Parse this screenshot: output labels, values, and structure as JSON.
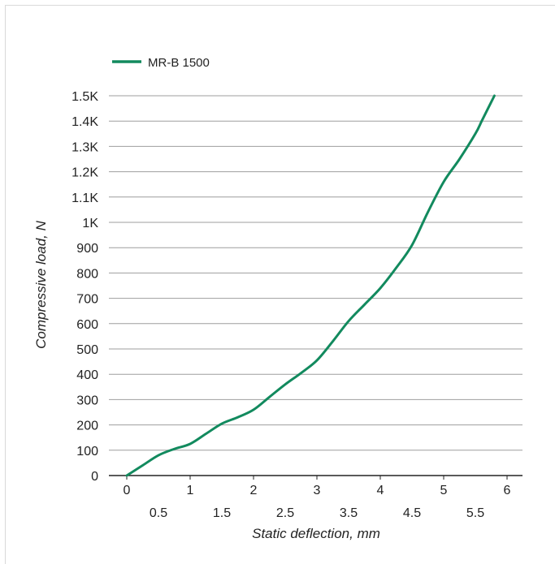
{
  "chart_data": {
    "type": "line",
    "xlabel": "Static deflection, mm",
    "ylabel": "Compressive load, N",
    "xlim": [
      0,
      6
    ],
    "ylim": [
      0,
      1500
    ],
    "x_ticks": [
      "0",
      "0.5",
      "1",
      "1.5",
      "2",
      "2.5",
      "3",
      "3.5",
      "4",
      "4.5",
      "5",
      "5.5",
      "6"
    ],
    "x_tick_values": [
      0,
      0.5,
      1,
      1.5,
      2,
      2.5,
      3,
      3.5,
      4,
      4.5,
      5,
      5.5,
      6
    ],
    "y_ticks": [
      "0",
      "100",
      "200",
      "300",
      "400",
      "500",
      "600",
      "700",
      "800",
      "900",
      "1K",
      "1.1K",
      "1.2K",
      "1.3K",
      "1.4K",
      "1.5K"
    ],
    "y_tick_values": [
      0,
      100,
      200,
      300,
      400,
      500,
      600,
      700,
      800,
      900,
      1000,
      1100,
      1200,
      1300,
      1400,
      1500
    ],
    "grid": true,
    "legend_position": "top-left",
    "series": [
      {
        "name": "MR-B 1500",
        "color": "#128a5e",
        "x": [
          0,
          0.25,
          0.5,
          0.75,
          1,
          1.25,
          1.5,
          1.75,
          2,
          2.25,
          2.5,
          2.75,
          3,
          3.25,
          3.5,
          3.75,
          4,
          4.25,
          4.5,
          4.75,
          5,
          5.25,
          5.5,
          5.6,
          5.7,
          5.8
        ],
        "y": [
          0,
          40,
          80,
          105,
          125,
          165,
          205,
          230,
          260,
          310,
          360,
          405,
          455,
          530,
          610,
          675,
          740,
          820,
          910,
          1040,
          1160,
          1250,
          1350,
          1400,
          1450,
          1500
        ]
      }
    ]
  }
}
